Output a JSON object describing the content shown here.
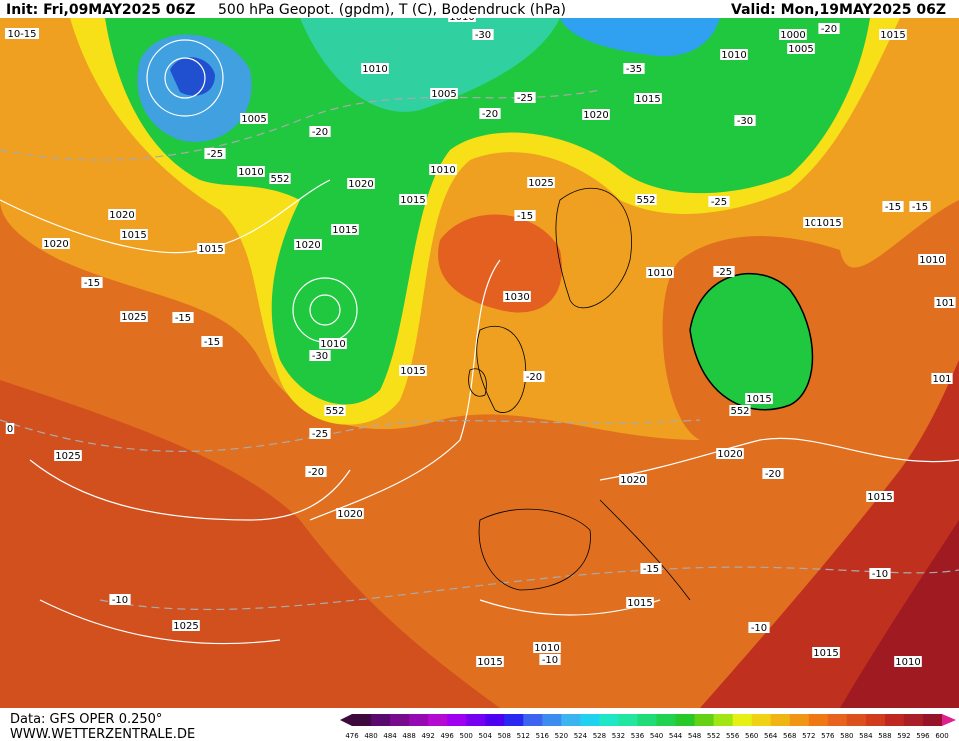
{
  "header": {
    "init": "Init: Fri,09MAY2025 06Z",
    "title": "500 hPa Geopot. (gpdm), T (C), Bodendruck (hPa)",
    "valid": "Valid: Mon,19MAY2025 06Z"
  },
  "footer": {
    "source": "Data: GFS OPER 0.250°",
    "site": "WWW.WETTERZENTRALE.DE"
  },
  "colorbar": {
    "levels": [
      "476",
      "480",
      "484",
      "488",
      "492",
      "496",
      "500",
      "504",
      "508",
      "512",
      "516",
      "520",
      "524",
      "528",
      "532",
      "536",
      "540",
      "544",
      "548",
      "552",
      "556",
      "560",
      "564",
      "568",
      "572",
      "576",
      "580",
      "584",
      "588",
      "592",
      "596",
      "600"
    ]
  },
  "map_labels": [
    "10-15",
    "1010",
    "-30",
    "1000",
    "1005",
    "-20",
    "1015",
    "1010",
    "-35",
    "1010",
    "1005",
    "-25",
    "1015",
    "1005",
    "-20",
    "1020",
    "-30",
    "-25",
    "1010",
    "552",
    "1020",
    "1010",
    "-20",
    "1025",
    "1015",
    "-15",
    "552",
    "-25",
    "1015",
    "-15",
    "1020",
    "1015",
    "1020",
    "1015",
    "1030",
    "-15",
    "1020",
    "-25",
    "1010",
    "1025",
    "-15",
    "1010",
    "1015",
    "-30",
    "-15",
    "1015",
    "-20",
    "552",
    "1015",
    "-25",
    "-20",
    "1025",
    "1020",
    "552",
    "1020",
    "-20",
    "1015",
    "1020",
    "-15",
    "-10",
    "-10",
    "1025",
    "1015",
    "-10",
    "1010",
    "1015",
    "1015",
    "1010",
    "-10",
    "1010",
    "1015",
    "-15",
    "0",
    "101",
    "101"
  ]
}
